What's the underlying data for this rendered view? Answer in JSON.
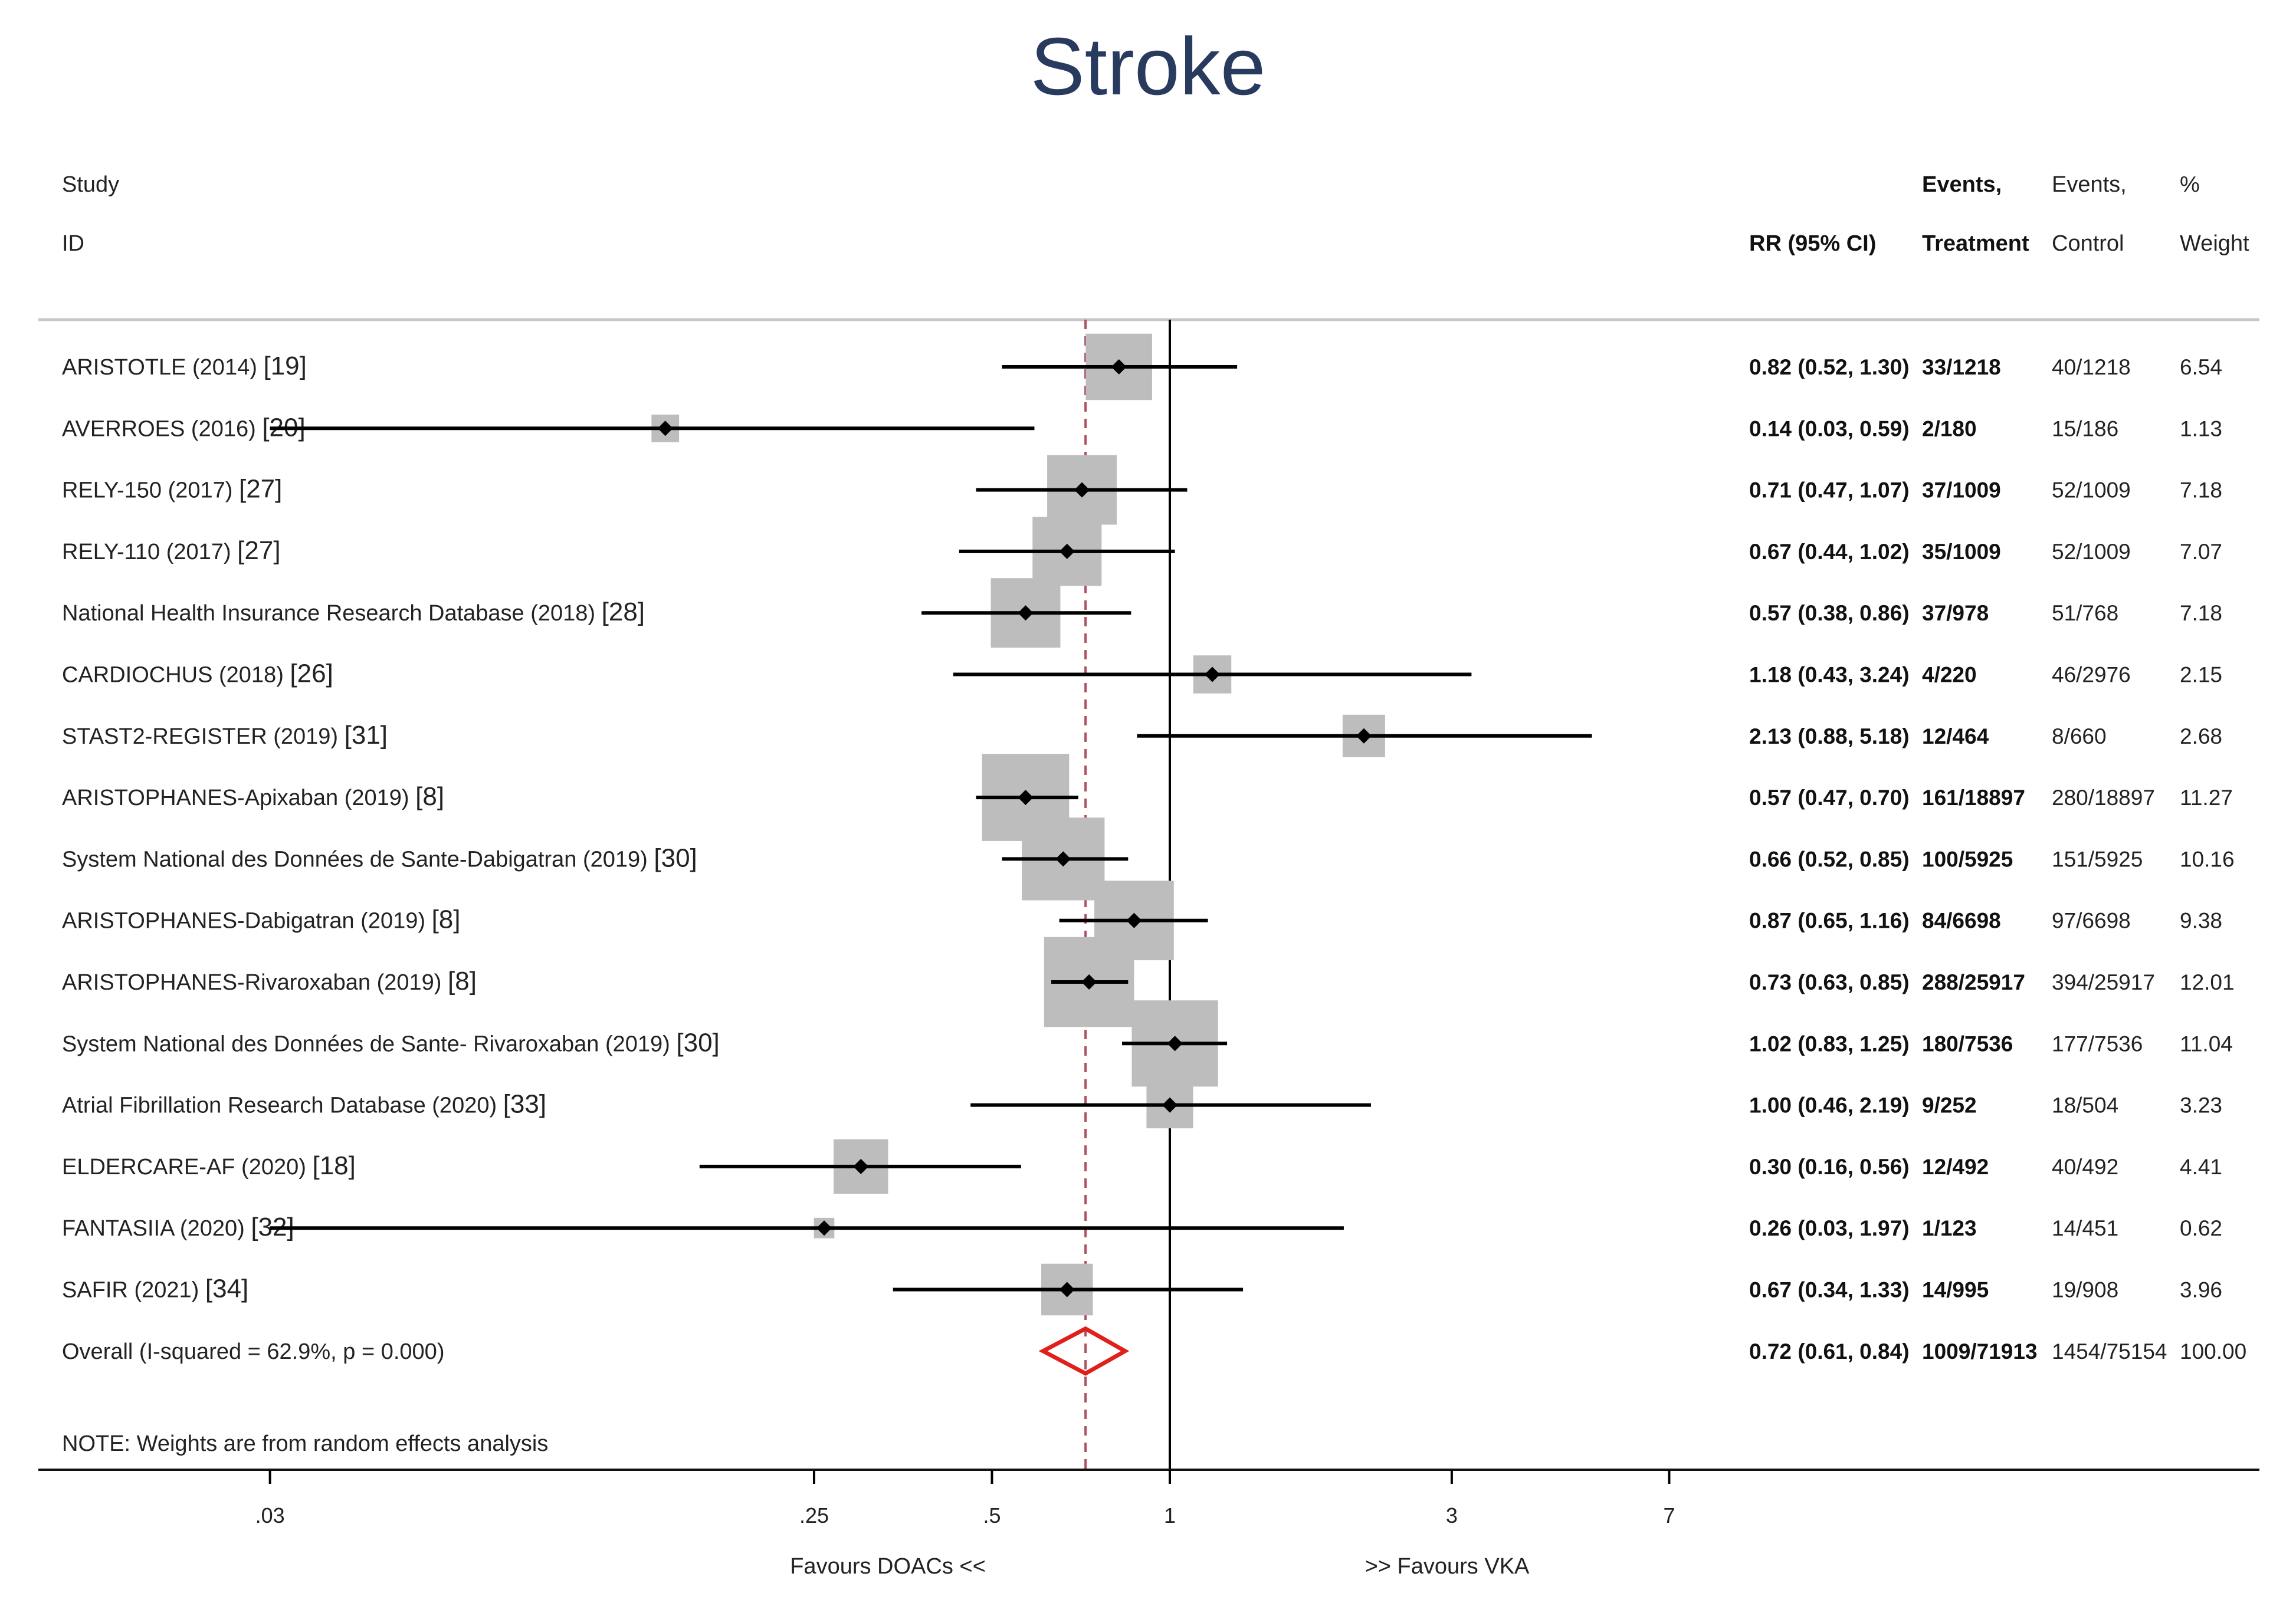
{
  "chart_data": {
    "type": "forest",
    "title": "Stroke",
    "headers": {
      "study_line1": "Study",
      "study_line2": "ID",
      "rr": "RR (95% CI)",
      "treat_line1": "Events,",
      "treat_line2": "Treatment",
      "ctrl_line1": "Events,",
      "ctrl_line2": "Control",
      "weight_line1": "%",
      "weight_line2": "Weight"
    },
    "studies": [
      {
        "name": "ARISTOTLE (2014)",
        "ref": "[19]",
        "rr": 0.82,
        "lo": 0.52,
        "hi": 1.3,
        "rr_text": "0.82 (0.52, 1.30)",
        "treatment": "33/1218",
        "control": "40/1218",
        "weight": "6.54"
      },
      {
        "name": "AVERROES (2016)",
        "ref": "[20]",
        "rr": 0.14,
        "lo": 0.03,
        "hi": 0.59,
        "rr_text": "0.14 (0.03, 0.59)",
        "treatment": "2/180",
        "control": "15/186",
        "weight": "1.13"
      },
      {
        "name": "RELY-150 (2017)",
        "ref": "[27]",
        "rr": 0.71,
        "lo": 0.47,
        "hi": 1.07,
        "rr_text": "0.71 (0.47, 1.07)",
        "treatment": "37/1009",
        "control": "52/1009",
        "weight": "7.18"
      },
      {
        "name": "RELY-110 (2017)",
        "ref": "[27]",
        "rr": 0.67,
        "lo": 0.44,
        "hi": 1.02,
        "rr_text": "0.67 (0.44, 1.02)",
        "treatment": "35/1009",
        "control": "52/1009",
        "weight": "7.07"
      },
      {
        "name": "National Health Insurance Research Database (2018)",
        "ref": "[28]",
        "rr": 0.57,
        "lo": 0.38,
        "hi": 0.86,
        "rr_text": "0.57 (0.38, 0.86)",
        "treatment": "37/978",
        "control": "51/768",
        "weight": "7.18"
      },
      {
        "name": "CARDIOCHUS (2018)",
        "ref": "[26]",
        "rr": 1.18,
        "lo": 0.43,
        "hi": 3.24,
        "rr_text": "1.18 (0.43, 3.24)",
        "treatment": "4/220",
        "control": "46/2976",
        "weight": "2.15"
      },
      {
        "name": "STAST2-REGISTER (2019)",
        "ref": "[31]",
        "rr": 2.13,
        "lo": 0.88,
        "hi": 5.18,
        "rr_text": "2.13 (0.88, 5.18)",
        "treatment": "12/464",
        "control": "8/660",
        "weight": "2.68"
      },
      {
        "name": "ARISTOPHANES-Apixaban (2019)",
        "ref": "[8]",
        "rr": 0.57,
        "lo": 0.47,
        "hi": 0.7,
        "rr_text": "0.57 (0.47, 0.70)",
        "treatment": "161/18897",
        "control": "280/18897",
        "weight": "11.27"
      },
      {
        "name": "System National des Données de Sante-Dabigatran (2019)",
        "ref": "[30]",
        "rr": 0.66,
        "lo": 0.52,
        "hi": 0.85,
        "rr_text": "0.66 (0.52, 0.85)",
        "treatment": "100/5925",
        "control": "151/5925",
        "weight": "10.16"
      },
      {
        "name": "ARISTOPHANES-Dabigatran (2019)",
        "ref": "[8]",
        "rr": 0.87,
        "lo": 0.65,
        "hi": 1.16,
        "rr_text": "0.87 (0.65, 1.16)",
        "treatment": "84/6698",
        "control": "97/6698",
        "weight": "9.38"
      },
      {
        "name": "ARISTOPHANES-Rivaroxaban (2019)",
        "ref": "[8]",
        "rr": 0.73,
        "lo": 0.63,
        "hi": 0.85,
        "rr_text": "0.73 (0.63, 0.85)",
        "treatment": "288/25917",
        "control": "394/25917",
        "weight": "12.01"
      },
      {
        "name": "System National des Données de Sante- Rivaroxaban (2019)",
        "ref": "[30]",
        "rr": 1.02,
        "lo": 0.83,
        "hi": 1.25,
        "rr_text": "1.02 (0.83, 1.25)",
        "treatment": "180/7536",
        "control": "177/7536",
        "weight": "11.04"
      },
      {
        "name": "Atrial Fibrillation Research Database (2020)",
        "ref": "[33]",
        "rr": 1.0,
        "lo": 0.46,
        "hi": 2.19,
        "rr_text": "1.00 (0.46, 2.19)",
        "treatment": "9/252",
        "control": "18/504",
        "weight": "3.23"
      },
      {
        "name": "ELDERCARE-AF (2020)",
        "ref": "[18]",
        "rr": 0.3,
        "lo": 0.16,
        "hi": 0.56,
        "rr_text": "0.30 (0.16, 0.56)",
        "treatment": "12/492",
        "control": "40/492",
        "weight": "4.41"
      },
      {
        "name": "FANTASIIA (2020)",
        "ref": "[32]",
        "rr": 0.26,
        "lo": 0.03,
        "hi": 1.97,
        "rr_text": "0.26 (0.03, 1.97)",
        "treatment": "1/123",
        "control": "14/451",
        "weight": "0.62"
      },
      {
        "name": "SAFIR (2021)",
        "ref": "[34]",
        "rr": 0.67,
        "lo": 0.34,
        "hi": 1.33,
        "rr_text": "0.67 (0.34, 1.33)",
        "treatment": "14/995",
        "control": "19/908",
        "weight": "3.96"
      }
    ],
    "overall": {
      "label": "Overall  (I-squared = 62.9%, p = 0.000)",
      "rr": 0.72,
      "lo": 0.61,
      "hi": 0.84,
      "rr_text": "0.72 (0.61, 0.84)",
      "treatment": "1009/71913",
      "control": "1454/75154",
      "weight": "100.00"
    },
    "note": "NOTE: Weights are from random effects analysis",
    "x_axis": {
      "scale": "log",
      "ticks": [
        {
          "value": 0.03,
          "label": ".03"
        },
        {
          "value": 0.25,
          "label": ".25"
        },
        {
          "value": 0.5,
          "label": ".5"
        },
        {
          "value": 1,
          "label": "1"
        },
        {
          "value": 3,
          "label": "3"
        },
        {
          "value": 7,
          "label": "7"
        }
      ],
      "null_value": 1,
      "favours_left": "Favours DOACs <<",
      "favours_right": ">> Favours VKA"
    },
    "colors": {
      "title": "#283a5e",
      "box": "#bdbdbd",
      "overall_diamond": "#e0201a",
      "overall_line": "#b05060",
      "line": "#000000"
    }
  }
}
